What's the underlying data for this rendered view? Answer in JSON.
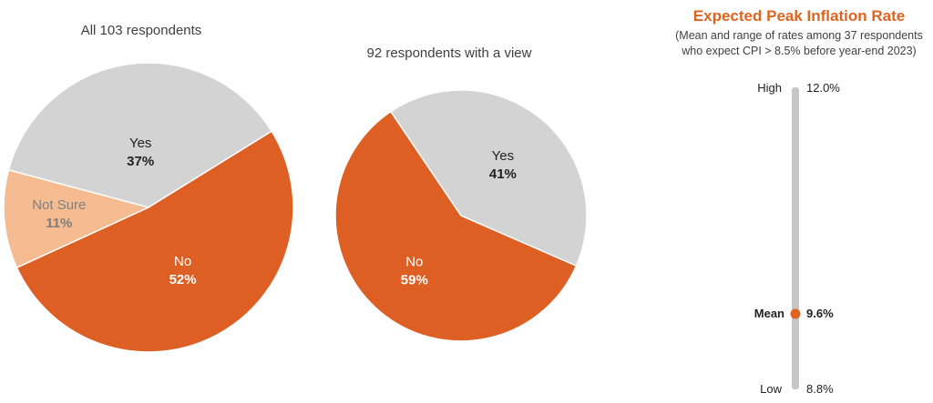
{
  "colors": {
    "no": "#DD5F23",
    "yes": "#D3D3D3",
    "not_sure": "#F5BB91",
    "accent": "#E0631F",
    "range_bar": "#C6C6C6",
    "title_text": "#404040",
    "label_text": "#222222",
    "not_sure_text": "#7F7F7F"
  },
  "chart_data": [
    {
      "type": "pie",
      "title": "All 103 respondents",
      "slices": [
        {
          "label": "Yes",
          "value": 37,
          "value_label": "37%"
        },
        {
          "label": "No",
          "value": 52,
          "value_label": "52%"
        },
        {
          "label": "Not Sure",
          "value": 11,
          "value_label": "11%"
        }
      ]
    },
    {
      "type": "pie",
      "title": "92 respondents with a view",
      "slices": [
        {
          "label": "Yes",
          "value": 41,
          "value_label": "41%"
        },
        {
          "label": "No",
          "value": 59,
          "value_label": "59%"
        }
      ]
    },
    {
      "type": "range",
      "title": "Expected Peak Inflation Rate",
      "subtitle_lines": [
        "(Mean and range of rates among 37 respondents",
        "who expect CPI > 8.5% before year-end 2023)"
      ],
      "high": {
        "label": "High",
        "value": 12.0,
        "value_label": "12.0%"
      },
      "mean": {
        "label": "Mean",
        "value": 9.6,
        "value_label": "9.6%"
      },
      "low": {
        "label": "Low",
        "value": 8.8,
        "value_label": "8.8%"
      }
    }
  ]
}
